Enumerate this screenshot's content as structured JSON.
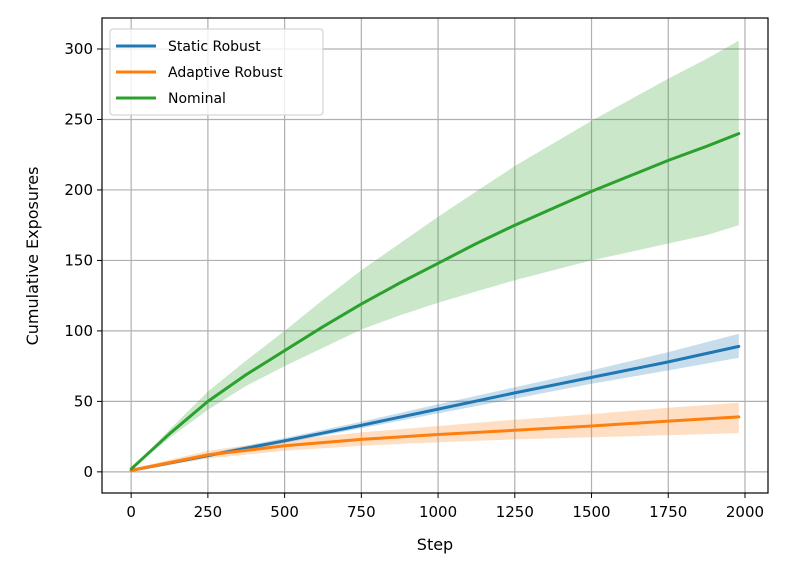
{
  "chart_data": {
    "type": "line",
    "title": "",
    "xlabel": "Step",
    "ylabel": "Cumulative Exposures",
    "xlim": [
      -95,
      2075
    ],
    "ylim": [
      -15,
      322
    ],
    "xticks": [
      0,
      250,
      500,
      750,
      1000,
      1250,
      1500,
      1750,
      2000
    ],
    "yticks": [
      0,
      50,
      100,
      150,
      200,
      250,
      300
    ],
    "grid": true,
    "legend_position": "top-left",
    "series": [
      {
        "name": "Static Robust",
        "color": "#1f77b4",
        "x": [
          0,
          250,
          500,
          750,
          1000,
          1250,
          1500,
          1750,
          1980
        ],
        "y": [
          1,
          11.5,
          22,
          33,
          44.5,
          56,
          67,
          78,
          89
        ],
        "y_lower": [
          1,
          10.5,
          20.5,
          31,
          41.5,
          52,
          62.5,
          72,
          81
        ],
        "y_upper": [
          1,
          13,
          24,
          35.5,
          48,
          60,
          72,
          85,
          98
        ]
      },
      {
        "name": "Adaptive Robust",
        "color": "#ff7f0e",
        "x": [
          0,
          250,
          500,
          750,
          1000,
          1250,
          1500,
          1750,
          1980
        ],
        "y": [
          1,
          12,
          18.5,
          23,
          26.5,
          29.5,
          32.5,
          36,
          39
        ],
        "y_lower": [
          0,
          9.5,
          15,
          18.5,
          21,
          23,
          24.5,
          26,
          27.5
        ],
        "y_upper": [
          2,
          15,
          22.5,
          28,
          32.5,
          37,
          41,
          45.5,
          49
        ]
      },
      {
        "name": "Nominal",
        "color": "#2ca02c",
        "x": [
          0,
          125,
          250,
          375,
          500,
          625,
          750,
          875,
          1000,
          1125,
          1250,
          1375,
          1500,
          1625,
          1750,
          1875,
          1980
        ],
        "y": [
          2,
          27,
          50,
          69,
          86,
          103,
          119,
          134,
          148,
          162,
          175,
          187,
          199,
          210,
          221,
          231,
          240
        ],
        "y_lower": [
          2,
          24,
          44,
          61,
          75,
          88,
          101,
          111,
          120,
          128,
          136,
          143,
          150,
          156,
          162,
          168,
          175
        ],
        "y_upper": [
          2,
          30,
          57,
          79,
          100,
          122,
          143,
          162,
          181,
          199,
          217,
          233,
          249,
          264,
          279,
          293,
          306
        ]
      }
    ]
  }
}
